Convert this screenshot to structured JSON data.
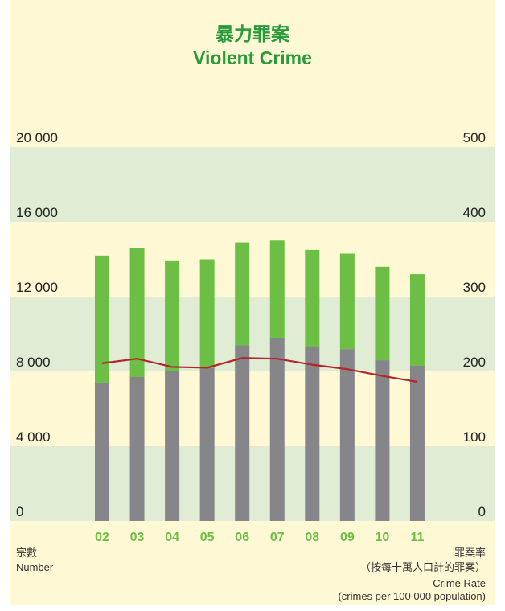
{
  "chart_data": {
    "type": "bar",
    "stacked": true,
    "title": "暴力罪案",
    "subtitle": "Violent Crime",
    "categories": [
      "02",
      "03",
      "04",
      "05",
      "06",
      "07",
      "08",
      "09",
      "10",
      "11"
    ],
    "series": [
      {
        "color": "#86868a",
        "values": [
          7400,
          7700,
          8000,
          8200,
          9400,
          9800,
          9300,
          9200,
          8600,
          8300
        ]
      },
      {
        "color": "#6cbe45",
        "values": [
          6800,
          6900,
          5900,
          5800,
          5500,
          5200,
          5200,
          5100,
          5000,
          4900
        ]
      },
      {
        "type": "line",
        "axis": "y2",
        "color": "#b5232b",
        "values": [
          211,
          217,
          206,
          205,
          218,
          217,
          209,
          203,
          194,
          186
        ]
      }
    ],
    "ylim": [
      0,
      20000
    ],
    "yticks": [
      0,
      {
        "value": 4000,
        "label": "4 000"
      },
      {
        "value": 8000,
        "label": "8 000"
      },
      {
        "value": 12000,
        "label": "12 000"
      },
      {
        "value": 16000,
        "label": "16 000"
      },
      {
        "value": 20000,
        "label": "20 000"
      }
    ],
    "y2lim": [
      0,
      500
    ],
    "y2ticks": [
      0,
      100,
      200,
      300,
      400,
      500
    ],
    "grid": true,
    "ylabel": [
      "宗數",
      "Number"
    ],
    "y2label": [
      "罪案率",
      "（按每十萬人口計的罪案）",
      "Crime Rate",
      "(crimes per 100 000 population)"
    ]
  }
}
